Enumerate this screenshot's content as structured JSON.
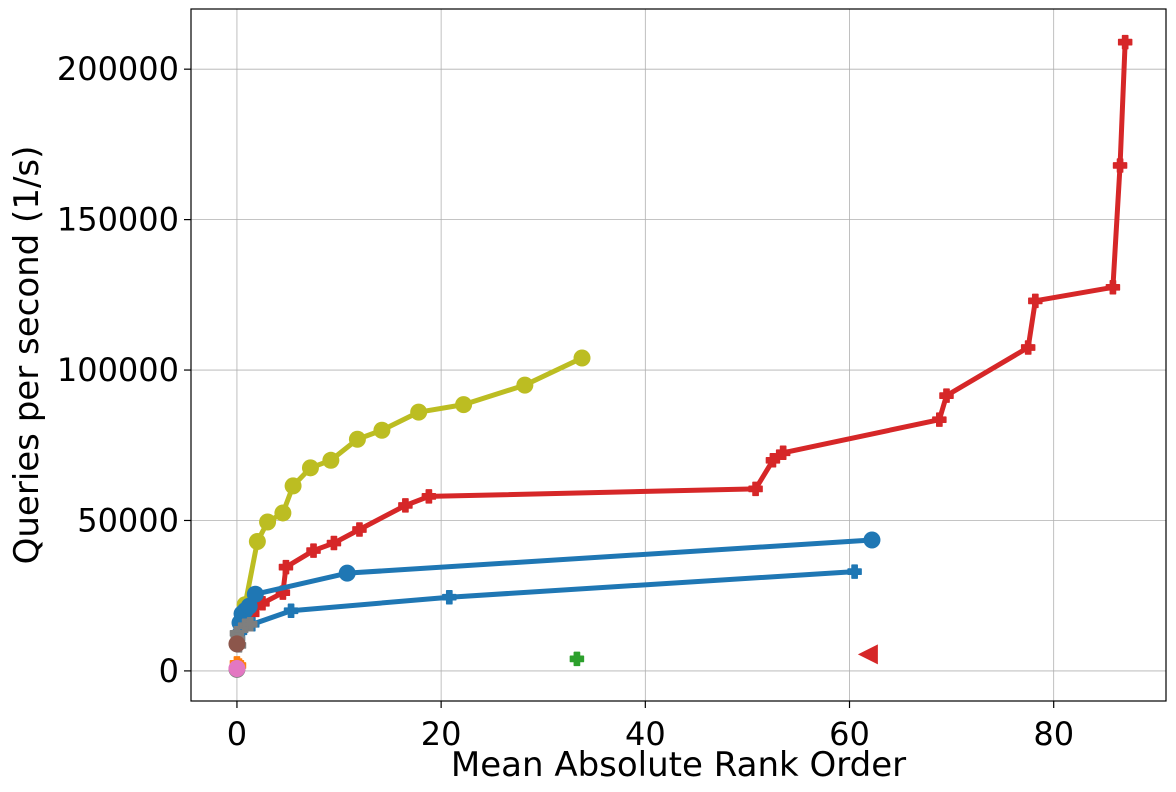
{
  "chart_data": {
    "type": "line",
    "title": "",
    "xlabel": "Mean Absolute Rank Order",
    "ylabel": "Queries per second (1/s)",
    "xlim": [
      -4.5,
      91
    ],
    "ylim": [
      -10000,
      220000
    ],
    "grid": true,
    "legend": "none",
    "x_ticks": [
      0,
      20,
      40,
      60,
      80
    ],
    "y_ticks": [
      0,
      50000,
      100000,
      150000,
      200000
    ],
    "x_tick_labels": [
      "0",
      "20",
      "40",
      "60",
      "80"
    ],
    "y_tick_labels": [
      "0",
      "50000",
      "100000",
      "150000",
      "200000"
    ],
    "series": [
      {
        "color": "#d62728",
        "marker": "plus",
        "line": true,
        "points": [
          [
            0.8,
            17000
          ],
          [
            1.5,
            19000
          ],
          [
            2.5,
            22500
          ],
          [
            4.5,
            26000
          ],
          [
            4.8,
            34500
          ],
          [
            7.5,
            40000
          ],
          [
            9.5,
            42500
          ],
          [
            12,
            47000
          ],
          [
            16.5,
            55000
          ],
          [
            18.8,
            58000
          ],
          [
            50.8,
            60500
          ],
          [
            52.5,
            70000
          ],
          [
            53.5,
            72500
          ],
          [
            68.8,
            83500
          ],
          [
            69.5,
            91500
          ],
          [
            77.5,
            107500
          ],
          [
            78.2,
            123000
          ],
          [
            85.8,
            127500
          ],
          [
            86.5,
            168000
          ],
          [
            87,
            209000
          ]
        ]
      },
      {
        "color": "#bcbd22",
        "marker": "circle",
        "line": true,
        "points": [
          [
            0.8,
            22000
          ],
          [
            2,
            43000
          ],
          [
            3,
            49500
          ],
          [
            4.5,
            52500
          ],
          [
            5.5,
            61500
          ],
          [
            7.2,
            67500
          ],
          [
            9.2,
            70000
          ],
          [
            11.8,
            77000
          ],
          [
            14.2,
            80000
          ],
          [
            17.8,
            86000
          ],
          [
            22.2,
            88500
          ],
          [
            28.2,
            95000
          ],
          [
            33.8,
            104000
          ]
        ]
      },
      {
        "color": "#1f77b4",
        "marker": "circle",
        "line": true,
        "points": [
          [
            0.3,
            16000
          ],
          [
            0.5,
            19000
          ],
          [
            0.8,
            20000
          ],
          [
            1.2,
            21500
          ],
          [
            1.8,
            25500
          ],
          [
            10.8,
            32500
          ],
          [
            62.2,
            43500
          ]
        ]
      },
      {
        "color": "#1f77b4",
        "marker": "plus",
        "line": true,
        "points": [
          [
            0.1,
            11000
          ],
          [
            0.3,
            13000
          ],
          [
            1.5,
            15500
          ],
          [
            5.3,
            20000
          ],
          [
            20.8,
            24500
          ],
          [
            60.5,
            33000
          ]
        ]
      },
      {
        "color": "#2ca02c",
        "marker": "plus",
        "line": false,
        "points": [
          [
            33.3,
            4000
          ]
        ]
      },
      {
        "color": "#d62728",
        "marker": "triangle-left",
        "line": false,
        "points": [
          [
            61.8,
            5500
          ]
        ]
      },
      {
        "color": "#7f7f7f",
        "marker": "plus",
        "line": false,
        "points": [
          [
            0,
            12500
          ],
          [
            0.1,
            10500
          ],
          [
            0.2,
            8500
          ],
          [
            0.8,
            15000
          ],
          [
            1.3,
            15500
          ]
        ]
      },
      {
        "color": "#ff7f0e",
        "marker": "plus",
        "line": false,
        "points": [
          [
            0,
            2500
          ],
          [
            0.2,
            1800
          ]
        ]
      },
      {
        "color": "#8c564b",
        "marker": "circle",
        "line": false,
        "points": [
          [
            0,
            9000
          ]
        ]
      },
      {
        "color": "#7f7f7f",
        "marker": "circle",
        "line": false,
        "points": [
          [
            0,
            500
          ]
        ]
      },
      {
        "color": "#e377c2",
        "marker": "circle",
        "line": false,
        "points": [
          [
            0,
            800
          ]
        ]
      }
    ]
  }
}
